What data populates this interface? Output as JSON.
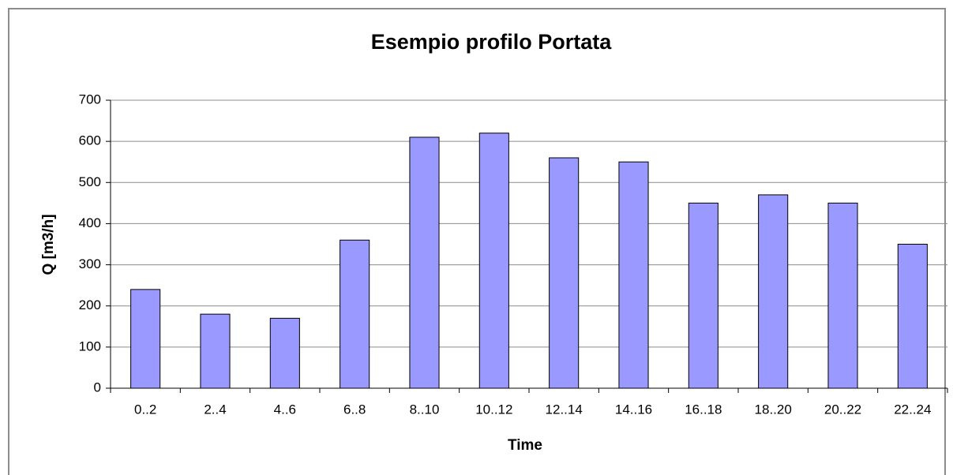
{
  "chart_data": {
    "type": "bar",
    "title": "Esempio profilo Portata",
    "x_label": "Time",
    "y_label": "Q [m3/h]",
    "categories": [
      "0..2",
      "2..4",
      "4..6",
      "6..8",
      "8..10",
      "10..12",
      "12..14",
      "14..16",
      "16..18",
      "18..20",
      "20..22",
      "22..24"
    ],
    "values": [
      240,
      180,
      170,
      360,
      610,
      620,
      560,
      550,
      450,
      470,
      450,
      350
    ],
    "color": "#9999ff",
    "ylim": [
      0,
      700
    ],
    "yticks": [
      0,
      100,
      200,
      300,
      400,
      500,
      600,
      700
    ],
    "grid": true
  }
}
